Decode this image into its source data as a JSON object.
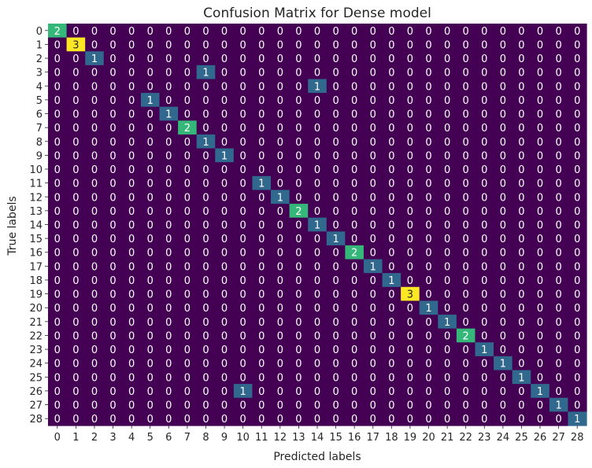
{
  "chart_data": {
    "type": "heatmap",
    "title": "Confusion Matrix for Dense model",
    "xlabel": "Predicted labels",
    "ylabel": "True labels",
    "x_ticks": [
      "0",
      "1",
      "2",
      "3",
      "4",
      "5",
      "6",
      "7",
      "8",
      "9",
      "10",
      "11",
      "12",
      "13",
      "14",
      "15",
      "16",
      "17",
      "18",
      "19",
      "20",
      "21",
      "22",
      "23",
      "24",
      "25",
      "26",
      "27",
      "28"
    ],
    "y_ticks": [
      "0",
      "1",
      "2",
      "3",
      "4",
      "5",
      "6",
      "7",
      "8",
      "9",
      "10",
      "11",
      "12",
      "13",
      "14",
      "15",
      "16",
      "17",
      "18",
      "19",
      "20",
      "21",
      "22",
      "23",
      "24",
      "25",
      "26",
      "27",
      "28"
    ],
    "colormap": "viridis",
    "value_range": [
      0,
      3
    ],
    "colorbar": false,
    "annotated": true,
    "nonzero_cells": [
      {
        "row": 0,
        "col": 0,
        "value": 2
      },
      {
        "row": 1,
        "col": 1,
        "value": 3
      },
      {
        "row": 2,
        "col": 2,
        "value": 1
      },
      {
        "row": 3,
        "col": 8,
        "value": 1
      },
      {
        "row": 4,
        "col": 14,
        "value": 1
      },
      {
        "row": 5,
        "col": 5,
        "value": 1
      },
      {
        "row": 6,
        "col": 6,
        "value": 1
      },
      {
        "row": 7,
        "col": 7,
        "value": 2
      },
      {
        "row": 8,
        "col": 8,
        "value": 1
      },
      {
        "row": 9,
        "col": 9,
        "value": 1
      },
      {
        "row": 11,
        "col": 11,
        "value": 1
      },
      {
        "row": 12,
        "col": 12,
        "value": 1
      },
      {
        "row": 13,
        "col": 13,
        "value": 2
      },
      {
        "row": 14,
        "col": 14,
        "value": 1
      },
      {
        "row": 15,
        "col": 15,
        "value": 1
      },
      {
        "row": 16,
        "col": 16,
        "value": 2
      },
      {
        "row": 17,
        "col": 17,
        "value": 1
      },
      {
        "row": 18,
        "col": 18,
        "value": 1
      },
      {
        "row": 19,
        "col": 19,
        "value": 3
      },
      {
        "row": 20,
        "col": 20,
        "value": 1
      },
      {
        "row": 21,
        "col": 21,
        "value": 1
      },
      {
        "row": 22,
        "col": 22,
        "value": 2
      },
      {
        "row": 23,
        "col": 23,
        "value": 1
      },
      {
        "row": 24,
        "col": 24,
        "value": 1
      },
      {
        "row": 25,
        "col": 25,
        "value": 1
      },
      {
        "row": 26,
        "col": 10,
        "value": 1
      },
      {
        "row": 26,
        "col": 26,
        "value": 1
      },
      {
        "row": 27,
        "col": 27,
        "value": 1
      },
      {
        "row": 28,
        "col": 28,
        "value": 1
      }
    ],
    "value_colors": {
      "0": "#440154",
      "1": "#31688e",
      "2": "#35b779",
      "3": "#fde725"
    },
    "text_colors": {
      "0": "#ffffff",
      "1": "#ffffff",
      "2": "#ffffff",
      "3": "#262626"
    }
  }
}
